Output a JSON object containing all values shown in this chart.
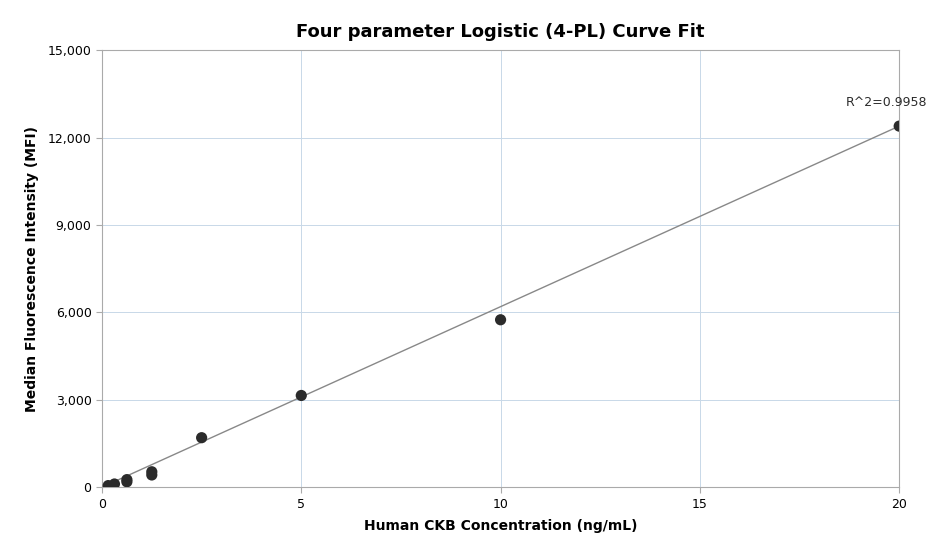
{
  "title": "Four parameter Logistic (4-PL) Curve Fit",
  "xlabel": "Human CKB Concentration (ng/mL)",
  "ylabel": "Median Fluorescence Intensity (MFI)",
  "scatter_x": [
    0.156,
    0.313,
    0.625,
    0.625,
    1.25,
    1.25,
    2.5,
    5.0,
    10.0,
    20.0
  ],
  "scatter_y": [
    55,
    110,
    185,
    260,
    420,
    530,
    1700,
    3150,
    5750,
    12400
  ],
  "line_x": [
    0.0,
    20.0
  ],
  "line_y": [
    0.0,
    12400.0
  ],
  "r_squared_text": "R^2=0.9958",
  "r_squared_x": 18.65,
  "r_squared_y": 13000,
  "xlim": [
    0,
    20
  ],
  "ylim": [
    0,
    15000
  ],
  "yticks": [
    0,
    3000,
    6000,
    9000,
    12000,
    15000
  ],
  "xticks": [
    0,
    5,
    10,
    15,
    20
  ],
  "scatter_color": "#2b2b2b",
  "line_color": "#888888",
  "background_color": "#ffffff",
  "grid_color": "#c8d8e8",
  "title_fontsize": 13,
  "label_fontsize": 10,
  "tick_fontsize": 9,
  "annotation_fontsize": 9
}
